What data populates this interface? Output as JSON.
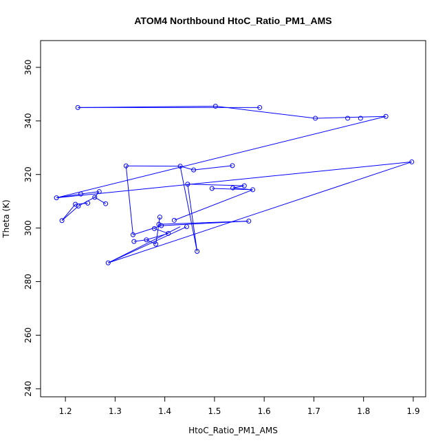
{
  "chart_data": {
    "type": "scatter",
    "title": "ATOM4 Northbound HtoC_Ratio_PM1_AMS",
    "xlabel": "HtoC_Ratio_PM1_AMS",
    "ylabel": "Theta (K)",
    "xlim": [
      1.15,
      1.925
    ],
    "ylim": [
      237,
      370
    ],
    "x_ticks": [
      "1.2",
      "1.3",
      "1.4",
      "1.5",
      "1.6",
      "1.7",
      "1.8",
      "1.9"
    ],
    "y_ticks": [
      "240",
      "260",
      "280",
      "300",
      "320",
      "340",
      "360"
    ],
    "grid": false,
    "legend": "none",
    "series_color": "#0000ff",
    "points": [
      {
        "x": 1.225,
        "y": 345.0
      },
      {
        "x": 1.502,
        "y": 345.5
      },
      {
        "x": 1.591,
        "y": 345.0
      },
      {
        "x": 1.703,
        "y": 341.0
      },
      {
        "x": 1.768,
        "y": 341.0
      },
      {
        "x": 1.794,
        "y": 341.0
      },
      {
        "x": 1.845,
        "y": 341.7
      },
      {
        "x": 1.182,
        "y": 311.3
      },
      {
        "x": 1.897,
        "y": 324.7
      },
      {
        "x": 1.286,
        "y": 287.0
      },
      {
        "x": 1.465,
        "y": 291.3
      },
      {
        "x": 1.431,
        "y": 323.1
      },
      {
        "x": 1.322,
        "y": 323.2
      },
      {
        "x": 1.336,
        "y": 297.5
      },
      {
        "x": 1.569,
        "y": 302.6
      },
      {
        "x": 1.338,
        "y": 295.0
      },
      {
        "x": 1.363,
        "y": 295.6
      },
      {
        "x": 1.382,
        "y": 294.0
      },
      {
        "x": 1.39,
        "y": 304.1
      },
      {
        "x": 1.393,
        "y": 300.9
      },
      {
        "x": 1.388,
        "y": 301.4
      },
      {
        "x": 1.379,
        "y": 299.8
      },
      {
        "x": 1.407,
        "y": 298.0
      },
      {
        "x": 1.444,
        "y": 300.5
      },
      {
        "x": 1.419,
        "y": 302.9
      },
      {
        "x": 1.577,
        "y": 314.3
      },
      {
        "x": 1.537,
        "y": 315.0
      },
      {
        "x": 1.56,
        "y": 315.8
      },
      {
        "x": 1.446,
        "y": 316.4
      },
      {
        "x": 1.495,
        "y": 314.8
      },
      {
        "x": 1.458,
        "y": 321.7
      },
      {
        "x": 1.536,
        "y": 323.3
      },
      {
        "x": 1.231,
        "y": 312.7
      },
      {
        "x": 1.268,
        "y": 313.6
      },
      {
        "x": 1.259,
        "y": 311.5
      },
      {
        "x": 1.281,
        "y": 309.1
      },
      {
        "x": 1.245,
        "y": 309.3
      },
      {
        "x": 1.22,
        "y": 308.9
      },
      {
        "x": 1.226,
        "y": 308.2
      },
      {
        "x": 1.193,
        "y": 302.8
      }
    ],
    "segments": [
      [
        1.225,
        345.0,
        1.591,
        345.0
      ],
      [
        1.225,
        345.0,
        1.502,
        345.5
      ],
      [
        1.502,
        345.5,
        1.703,
        341.0
      ],
      [
        1.703,
        341.0,
        1.845,
        341.7
      ],
      [
        1.845,
        341.7,
        1.182,
        311.3
      ],
      [
        1.182,
        311.3,
        1.897,
        324.7
      ],
      [
        1.897,
        324.7,
        1.286,
        287.0
      ],
      [
        1.286,
        287.0,
        1.431,
        300.5
      ],
      [
        1.286,
        287.0,
        1.444,
        300.5
      ],
      [
        1.465,
        291.3,
        1.431,
        323.1
      ],
      [
        1.465,
        291.3,
        1.446,
        316.4
      ],
      [
        1.431,
        323.1,
        1.322,
        323.2
      ],
      [
        1.322,
        323.2,
        1.336,
        297.5
      ],
      [
        1.336,
        297.5,
        1.393,
        300.9
      ],
      [
        1.393,
        300.9,
        1.569,
        302.6
      ],
      [
        1.569,
        302.6,
        1.388,
        301.4
      ],
      [
        1.338,
        295.0,
        1.363,
        295.6
      ],
      [
        1.363,
        295.6,
        1.382,
        294.0
      ],
      [
        1.382,
        294.0,
        1.39,
        304.1
      ],
      [
        1.379,
        299.8,
        1.407,
        298.0
      ],
      [
        1.363,
        295.6,
        1.407,
        298.0
      ],
      [
        1.419,
        302.9,
        1.577,
        314.3
      ],
      [
        1.577,
        314.3,
        1.537,
        315.0
      ],
      [
        1.537,
        315.0,
        1.56,
        315.8
      ],
      [
        1.56,
        315.8,
        1.446,
        316.4
      ],
      [
        1.495,
        314.8,
        1.577,
        314.3
      ],
      [
        1.458,
        321.7,
        1.536,
        323.3
      ],
      [
        1.458,
        321.7,
        1.431,
        323.1
      ],
      [
        1.182,
        311.3,
        1.231,
        312.7
      ],
      [
        1.231,
        312.7,
        1.268,
        313.6
      ],
      [
        1.268,
        313.6,
        1.259,
        311.5
      ],
      [
        1.259,
        311.5,
        1.281,
        309.1
      ],
      [
        1.259,
        311.5,
        1.226,
        308.2
      ],
      [
        1.245,
        309.3,
        1.22,
        308.9
      ],
      [
        1.22,
        308.9,
        1.193,
        302.8
      ],
      [
        1.226,
        308.2,
        1.193,
        302.8
      ]
    ]
  }
}
